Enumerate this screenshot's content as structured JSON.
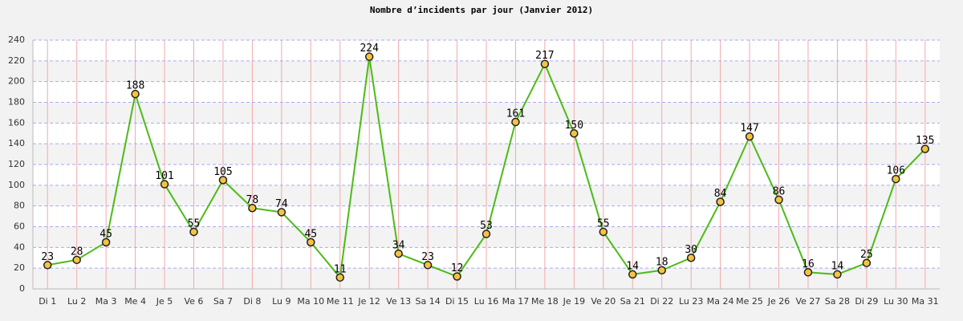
{
  "chart_data": {
    "type": "line",
    "title": "Nombre d’incidents par jour (Janvier 2012)",
    "categories": [
      "Di 1",
      "Lu 2",
      "Ma 3",
      "Me 4",
      "Je 5",
      "Ve 6",
      "Sa 7",
      "Di 8",
      "Lu 9",
      "Ma 10",
      "Me 11",
      "Je 12",
      "Ve 13",
      "Sa 14",
      "Di 15",
      "Lu 16",
      "Ma 17",
      "Me 18",
      "Je 19",
      "Ve 20",
      "Sa 21",
      "Di 22",
      "Lu 23",
      "Ma 24",
      "Me 25",
      "Je 26",
      "Ve 27",
      "Sa 28",
      "Di 29",
      "Lu 30",
      "Ma 31"
    ],
    "values": [
      23,
      28,
      45,
      188,
      101,
      55,
      105,
      78,
      74,
      45,
      11,
      224,
      34,
      23,
      12,
      53,
      161,
      217,
      150,
      55,
      14,
      18,
      30,
      84,
      147,
      86,
      16,
      14,
      25,
      106,
      135
    ],
    "color": "#4cbb17",
    "marker_color": "#f5c242",
    "ylim": [
      0,
      240
    ],
    "yticks": [
      0,
      20,
      40,
      60,
      80,
      100,
      120,
      140,
      160,
      180,
      200,
      220,
      240
    ],
    "grid": true
  }
}
